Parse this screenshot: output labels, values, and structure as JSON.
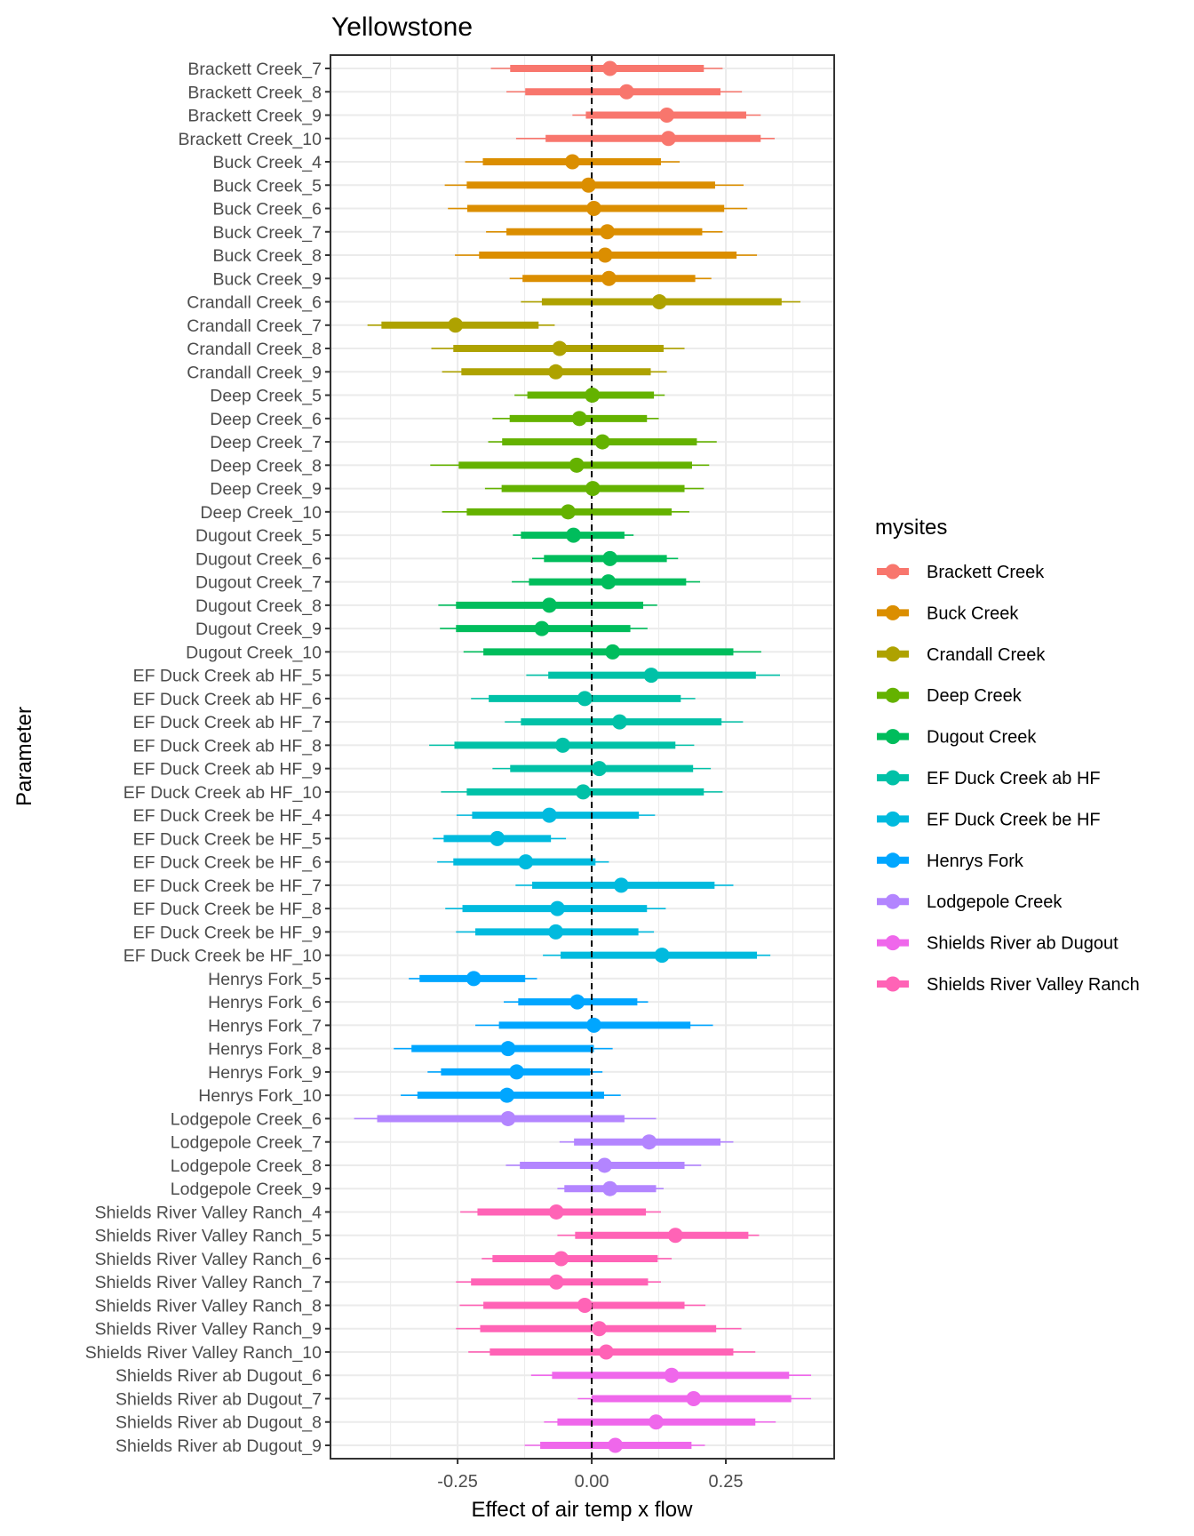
{
  "chart_data": {
    "type": "interval",
    "title": "Yellowstone",
    "xlabel": "Effect of air temp x flow",
    "ylabel": "Parameter",
    "xlim": [
      -0.487,
      0.452
    ],
    "xticks": [
      -0.25,
      0.0,
      0.25
    ],
    "xtick_labels": [
      "-0.25",
      "0.00",
      "0.25"
    ],
    "reference_line": {
      "x": 0,
      "style": "dashed",
      "color": "#000000"
    },
    "grid": true,
    "legend": {
      "title": "mysites",
      "position": "right",
      "entries": [
        {
          "label": "Brackett Creek",
          "color": "#F8766D"
        },
        {
          "label": "Buck Creek",
          "color": "#DB8E00"
        },
        {
          "label": "Crandall Creek",
          "color": "#AEA200"
        },
        {
          "label": "Deep Creek",
          "color": "#64B200"
        },
        {
          "label": "Dugout Creek",
          "color": "#00BD5C"
        },
        {
          "label": "EF Duck Creek ab HF",
          "color": "#00C1A7"
        },
        {
          "label": "EF Duck Creek be HF",
          "color": "#00BADE"
        },
        {
          "label": "Henrys Fork",
          "color": "#00A6FF"
        },
        {
          "label": "Lodgepole Creek",
          "color": "#B385FF"
        },
        {
          "label": "Shields River ab Dugout",
          "color": "#EF67EB"
        },
        {
          "label": "Shields River Valley Ranch",
          "color": "#FF63B6"
        }
      ]
    },
    "interval_description": "point = median; thick bar = 50% interval; thin line = 95% interval",
    "series_fields": [
      "label",
      "site",
      "lo95",
      "lo50",
      "median",
      "hi50",
      "hi95"
    ],
    "rows": [
      [
        "Brackett Creek_7",
        "Brackett Creek",
        -0.188,
        -0.152,
        0.034,
        0.209,
        0.244
      ],
      [
        "Brackett Creek_8",
        "Brackett Creek",
        -0.159,
        -0.124,
        0.065,
        0.24,
        0.28
      ],
      [
        "Brackett Creek_9",
        "Brackett Creek",
        -0.036,
        -0.011,
        0.14,
        0.288,
        0.315
      ],
      [
        "Brackett Creek_10",
        "Brackett Creek",
        -0.141,
        -0.086,
        0.143,
        0.315,
        0.341
      ],
      [
        "Buck Creek_4",
        "Buck Creek",
        -0.236,
        -0.203,
        -0.036,
        0.129,
        0.164
      ],
      [
        "Buck Creek_5",
        "Buck Creek",
        -0.274,
        -0.233,
        -0.006,
        0.23,
        0.283
      ],
      [
        "Buck Creek_6",
        "Buck Creek",
        -0.268,
        -0.232,
        0.004,
        0.247,
        0.29
      ],
      [
        "Buck Creek_7",
        "Buck Creek",
        -0.197,
        -0.159,
        0.029,
        0.206,
        0.244
      ],
      [
        "Buck Creek_8",
        "Buck Creek",
        -0.255,
        -0.21,
        0.025,
        0.27,
        0.308
      ],
      [
        "Buck Creek_9",
        "Buck Creek",
        -0.153,
        -0.129,
        0.032,
        0.193,
        0.223
      ],
      [
        "Crandall Creek_6",
        "Crandall Creek",
        -0.132,
        -0.093,
        0.126,
        0.354,
        0.389
      ],
      [
        "Crandall Creek_7",
        "Crandall Creek",
        -0.418,
        -0.392,
        -0.254,
        -0.099,
        -0.069
      ],
      [
        "Crandall Creek_8",
        "Crandall Creek",
        -0.299,
        -0.258,
        -0.06,
        0.134,
        0.173
      ],
      [
        "Crandall Creek_9",
        "Crandall Creek",
        -0.279,
        -0.243,
        -0.067,
        0.11,
        0.14
      ],
      [
        "Deep Creek_5",
        "Deep Creek",
        -0.144,
        -0.12,
        0.001,
        0.116,
        0.136
      ],
      [
        "Deep Creek_6",
        "Deep Creek",
        -0.185,
        -0.153,
        -0.023,
        0.103,
        0.125
      ],
      [
        "Deep Creek_7",
        "Deep Creek",
        -0.193,
        -0.167,
        0.02,
        0.196,
        0.233
      ],
      [
        "Deep Creek_8",
        "Deep Creek",
        -0.301,
        -0.248,
        -0.028,
        0.187,
        0.219
      ],
      [
        "Deep Creek_9",
        "Deep Creek",
        -0.199,
        -0.168,
        0.002,
        0.173,
        0.209
      ],
      [
        "Deep Creek_10",
        "Deep Creek",
        -0.279,
        -0.233,
        -0.044,
        0.149,
        0.182
      ],
      [
        "Dugout Creek_5",
        "Dugout Creek",
        -0.147,
        -0.132,
        -0.034,
        0.061,
        0.078
      ],
      [
        "Dugout Creek_6",
        "Dugout Creek",
        -0.111,
        -0.089,
        0.034,
        0.14,
        0.161
      ],
      [
        "Dugout Creek_7",
        "Dugout Creek",
        -0.149,
        -0.117,
        0.031,
        0.176,
        0.202
      ],
      [
        "Dugout Creek_8",
        "Dugout Creek",
        -0.286,
        -0.253,
        -0.079,
        0.096,
        0.122
      ],
      [
        "Dugout Creek_9",
        "Dugout Creek",
        -0.283,
        -0.253,
        -0.093,
        0.072,
        0.104
      ],
      [
        "Dugout Creek_10",
        "Dugout Creek",
        -0.239,
        -0.202,
        0.039,
        0.264,
        0.316
      ],
      [
        "EF Duck Creek ab HF_5",
        "EF Duck Creek ab HF",
        -0.122,
        -0.081,
        0.111,
        0.306,
        0.351
      ],
      [
        "EF Duck Creek ab HF_6",
        "EF Duck Creek ab HF",
        -0.225,
        -0.192,
        -0.013,
        0.166,
        0.193
      ],
      [
        "EF Duck Creek ab HF_7",
        "EF Duck Creek ab HF",
        -0.162,
        -0.132,
        0.052,
        0.242,
        0.282
      ],
      [
        "EF Duck Creek ab HF_8",
        "EF Duck Creek ab HF",
        -0.303,
        -0.256,
        -0.054,
        0.156,
        0.191
      ],
      [
        "EF Duck Creek ab HF_9",
        "EF Duck Creek ab HF",
        -0.185,
        -0.152,
        0.014,
        0.189,
        0.222
      ],
      [
        "EF Duck Creek ab HF_10",
        "EF Duck Creek ab HF",
        -0.281,
        -0.233,
        -0.016,
        0.209,
        0.244
      ],
      [
        "EF Duck Creek be HF_4",
        "EF Duck Creek be HF",
        -0.252,
        -0.223,
        -0.079,
        0.088,
        0.118
      ],
      [
        "EF Duck Creek be HF_5",
        "EF Duck Creek be HF",
        -0.296,
        -0.276,
        -0.176,
        -0.076,
        -0.048
      ],
      [
        "EF Duck Creek be HF_6",
        "EF Duck Creek be HF",
        -0.288,
        -0.258,
        -0.123,
        0.007,
        0.032
      ],
      [
        "EF Duck Creek be HF_7",
        "EF Duck Creek be HF",
        -0.142,
        -0.111,
        0.055,
        0.229,
        0.264
      ],
      [
        "EF Duck Creek be HF_8",
        "EF Duck Creek be HF",
        -0.273,
        -0.241,
        -0.064,
        0.103,
        0.138
      ],
      [
        "EF Duck Creek be HF_9",
        "EF Duck Creek be HF",
        -0.253,
        -0.217,
        -0.067,
        0.087,
        0.116
      ],
      [
        "EF Duck Creek be HF_10",
        "EF Duck Creek be HF",
        -0.091,
        -0.058,
        0.131,
        0.308,
        0.333
      ],
      [
        "Henrys Fork_5",
        "Henrys Fork",
        -0.341,
        -0.321,
        -0.22,
        -0.124,
        -0.102
      ],
      [
        "Henrys Fork_6",
        "Henrys Fork",
        -0.164,
        -0.137,
        -0.027,
        0.085,
        0.105
      ],
      [
        "Henrys Fork_7",
        "Henrys Fork",
        -0.217,
        -0.173,
        0.004,
        0.184,
        0.226
      ],
      [
        "Henrys Fork_8",
        "Henrys Fork",
        -0.369,
        -0.336,
        -0.156,
        0.004,
        0.039
      ],
      [
        "Henrys Fork_9",
        "Henrys Fork",
        -0.306,
        -0.281,
        -0.14,
        -0.003,
        0.02
      ],
      [
        "Henrys Fork_10",
        "Henrys Fork",
        -0.356,
        -0.325,
        -0.158,
        0.023,
        0.054
      ],
      [
        "Lodgepole Creek_6",
        "Lodgepole Creek",
        -0.443,
        -0.4,
        -0.156,
        0.061,
        0.12
      ],
      [
        "Lodgepole Creek_7",
        "Lodgepole Creek",
        -0.06,
        -0.033,
        0.107,
        0.24,
        0.264
      ],
      [
        "Lodgepole Creek_8",
        "Lodgepole Creek",
        -0.16,
        -0.134,
        0.024,
        0.173,
        0.204
      ],
      [
        "Lodgepole Creek_9",
        "Lodgepole Creek",
        -0.064,
        -0.051,
        0.034,
        0.12,
        0.134
      ],
      [
        "Shields River Valley Ranch_4",
        "Shields River Valley Ranch",
        -0.245,
        -0.213,
        -0.066,
        0.101,
        0.129
      ],
      [
        "Shields River Valley Ranch_5",
        "Shields River Valley Ranch",
        -0.064,
        -0.031,
        0.156,
        0.292,
        0.312
      ],
      [
        "Shields River Valley Ranch_6",
        "Shields River Valley Ranch",
        -0.205,
        -0.185,
        -0.057,
        0.123,
        0.149
      ],
      [
        "Shields River Valley Ranch_7",
        "Shields River Valley Ranch",
        -0.253,
        -0.225,
        -0.066,
        0.105,
        0.129
      ],
      [
        "Shields River Valley Ranch_8",
        "Shields River Valley Ranch",
        -0.246,
        -0.202,
        -0.013,
        0.173,
        0.212
      ],
      [
        "Shields River Valley Ranch_9",
        "Shields River Valley Ranch",
        -0.253,
        -0.208,
        0.014,
        0.232,
        0.279
      ],
      [
        "Shields River Valley Ranch_10",
        "Shields River Valley Ranch",
        -0.23,
        -0.19,
        0.027,
        0.264,
        0.305
      ],
      [
        "Shields River ab Dugout_6",
        "Shields River ab Dugout",
        -0.113,
        -0.074,
        0.149,
        0.368,
        0.409
      ],
      [
        "Shields River ab Dugout_7",
        "Shields River ab Dugout",
        -0.026,
        0.0,
        0.19,
        0.372,
        0.409
      ],
      [
        "Shields River ab Dugout_8",
        "Shields River ab Dugout",
        -0.089,
        -0.064,
        0.12,
        0.305,
        0.343
      ],
      [
        "Shields River ab Dugout_9",
        "Shields River ab Dugout",
        -0.125,
        -0.096,
        0.044,
        0.186,
        0.211
      ]
    ]
  }
}
